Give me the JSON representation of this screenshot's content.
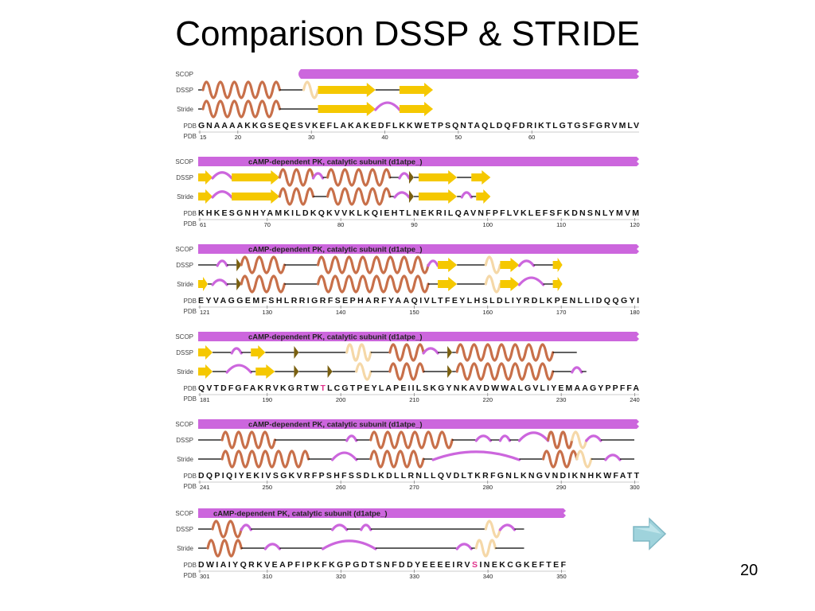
{
  "slide": {
    "title": "Comparison DSSP & STRIDE",
    "number": "20"
  },
  "labels": {
    "scop": "SCOP",
    "dssp": "DSSP",
    "stride": "Stride",
    "pdb": "PDB"
  },
  "colors": {
    "scop": "#cc66dd",
    "helix": "#c8704a",
    "strand": "#f5c800",
    "bridge": "#7a6010",
    "bend": "#cc66dd",
    "turn_pale": "#f5d8a8",
    "highlight": "#e0308a",
    "next_arrow": "#9fd3dc"
  },
  "blocks": [
    {
      "scop_label": "",
      "sequence": "GNAAAAKKGSEQESVKEFLAKAKEDFLKKWETPSQNTAQLDQFDRIKTLGTGSFGRVMLV",
      "numbers": [
        "15",
        "20",
        "30",
        "40",
        "50",
        "60"
      ],
      "highlight": [],
      "dssp": [
        [
          "l",
          0,
          1
        ],
        [
          "h",
          1,
          17
        ],
        [
          "l",
          17,
          22
        ],
        [
          "p",
          22,
          25
        ],
        [
          "s",
          25,
          37
        ],
        [
          "l",
          37,
          42
        ],
        [
          "s",
          42,
          49
        ]
      ],
      "stride": [
        [
          "l",
          0,
          1
        ],
        [
          "h",
          1,
          17
        ],
        [
          "l",
          17,
          25
        ],
        [
          "s",
          25,
          37
        ],
        [
          "b",
          37,
          42
        ],
        [
          "s",
          42,
          49
        ]
      ]
    },
    {
      "scop_label": "cAMP-dependent PK, catalytic subunit (d1atpe_)",
      "sequence": "KHKESGNHYAMKILDKQKVVKLKQIEHTLNEKRILQAVNFPFLVKLEFSFKDNSNLYMVM",
      "numbers": [
        "61",
        "70",
        "80",
        "90",
        "100",
        "110",
        "120"
      ],
      "highlight": [],
      "dssp": [
        [
          "s",
          0,
          3
        ],
        [
          "b",
          3,
          7
        ],
        [
          "s",
          7,
          17
        ],
        [
          "h",
          17,
          24
        ],
        [
          "b",
          24,
          26
        ],
        [
          "l",
          26,
          27
        ],
        [
          "h",
          27,
          40
        ],
        [
          "l",
          40,
          42
        ],
        [
          "b",
          42,
          44
        ],
        [
          "r",
          44,
          45
        ],
        [
          "l",
          45,
          46
        ],
        [
          "s",
          46,
          54
        ],
        [
          "l",
          54,
          57
        ],
        [
          "s",
          57,
          61
        ]
      ],
      "stride": [
        [
          "s",
          0,
          3
        ],
        [
          "b",
          3,
          7
        ],
        [
          "s",
          7,
          17
        ],
        [
          "h",
          17,
          24
        ],
        [
          "l",
          24,
          27
        ],
        [
          "h",
          27,
          40
        ],
        [
          "l",
          40,
          41
        ],
        [
          "b",
          41,
          44
        ],
        [
          "r",
          44,
          45
        ],
        [
          "l",
          45,
          46
        ],
        [
          "s",
          46,
          54
        ],
        [
          "l",
          54,
          55
        ],
        [
          "b",
          55,
          57
        ],
        [
          "l",
          57,
          58
        ],
        [
          "s",
          58,
          61
        ]
      ]
    },
    {
      "scop_label": "cAMP-dependent PK, catalytic subunit (d1atpe_)",
      "sequence": "EYVAGGEMFSHLRRIGRFSEPHARFYAAQIVLTFEYLHSLDLIYRDLKPENLLIDQQGYI",
      "numbers": [
        "121",
        "130",
        "140",
        "150",
        "160",
        "170",
        "180"
      ],
      "highlight": [],
      "dssp": [
        [
          "l",
          0,
          4
        ],
        [
          "b",
          4,
          6
        ],
        [
          "l",
          6,
          8
        ],
        [
          "r",
          8,
          9
        ],
        [
          "h",
          9,
          18
        ],
        [
          "l",
          18,
          25
        ],
        [
          "h",
          25,
          48
        ],
        [
          "b",
          48,
          50
        ],
        [
          "s",
          50,
          54
        ],
        [
          "l",
          54,
          60
        ],
        [
          "p",
          60,
          63
        ],
        [
          "s",
          63,
          67
        ],
        [
          "b",
          67,
          70
        ],
        [
          "l",
          70,
          74
        ],
        [
          "s",
          74,
          76
        ]
      ],
      "stride": [
        [
          "s",
          0,
          2
        ],
        [
          "l",
          2,
          3
        ],
        [
          "b",
          3,
          6
        ],
        [
          "l",
          6,
          8
        ],
        [
          "r",
          8,
          9
        ],
        [
          "h",
          9,
          18
        ],
        [
          "l",
          18,
          25
        ],
        [
          "h",
          25,
          48
        ],
        [
          "l",
          48,
          50
        ],
        [
          "s",
          50,
          54
        ],
        [
          "l",
          54,
          60
        ],
        [
          "p",
          60,
          63
        ],
        [
          "s",
          63,
          67
        ],
        [
          "b",
          67,
          72
        ],
        [
          "l",
          72,
          74
        ],
        [
          "s",
          74,
          76
        ]
      ]
    },
    {
      "scop_label": "cAMP-dependent PK, catalytic subunit (d1atpe_)",
      "sequence": "QVTDFGFAKRVKGRTWTLCGTPEYLAPEIILSKGYNKAVDWWALGVLIYEMAAGYPPFFA",
      "numbers": [
        "181",
        "190",
        "200",
        "210",
        "220",
        "230",
        "240"
      ],
      "highlight": [
        16
      ],
      "dssp": [
        [
          "s",
          0,
          3
        ],
        [
          "l",
          3,
          7
        ],
        [
          "b",
          7,
          9
        ],
        [
          "l",
          9,
          11
        ],
        [
          "s",
          11,
          14
        ],
        [
          "l",
          14,
          20
        ],
        [
          "r",
          20,
          21
        ],
        [
          "l",
          21,
          31
        ],
        [
          "p",
          31,
          36
        ],
        [
          "l",
          36,
          40
        ],
        [
          "h",
          40,
          47
        ],
        [
          "b",
          47,
          50
        ],
        [
          "l",
          50,
          52
        ],
        [
          "r",
          52,
          53
        ],
        [
          "l",
          53,
          54
        ],
        [
          "h",
          54,
          74
        ],
        [
          "l",
          74,
          79
        ]
      ],
      "stride": [
        [
          "s",
          0,
          3
        ],
        [
          "l",
          3,
          6
        ],
        [
          "b",
          6,
          11
        ],
        [
          "l",
          11,
          12
        ],
        [
          "s",
          12,
          16
        ],
        [
          "l",
          16,
          20
        ],
        [
          "r",
          20,
          21
        ],
        [
          "l",
          21,
          27
        ],
        [
          "r",
          27,
          28
        ],
        [
          "l",
          28,
          33
        ],
        [
          "p",
          33,
          36
        ],
        [
          "l",
          36,
          40
        ],
        [
          "h",
          40,
          47
        ],
        [
          "l",
          47,
          52
        ],
        [
          "r",
          52,
          53
        ],
        [
          "l",
          53,
          54
        ],
        [
          "h",
          54,
          74
        ],
        [
          "l",
          74,
          78
        ],
        [
          "b",
          78,
          80
        ],
        [
          "l",
          80,
          81
        ]
      ]
    },
    {
      "scop_label": "cAMP-dependent PK, catalytic subunit (d1atpe_)",
      "sequence": "DQPIQIYEKIVSGKVRFPSHFSSDLKDLLRNLLQVDLTKRFGNLKNGVNDIKNHKWFATT",
      "numbers": [
        "241",
        "250",
        "260",
        "270",
        "280",
        "290",
        "300"
      ],
      "highlight": [],
      "dssp": [
        [
          "l",
          0,
          5
        ],
        [
          "h",
          5,
          16
        ],
        [
          "l",
          16,
          31
        ],
        [
          "b",
          31,
          33
        ],
        [
          "l",
          33,
          36
        ],
        [
          "h",
          36,
          53
        ],
        [
          "l",
          53,
          58
        ],
        [
          "b",
          58,
          61
        ],
        [
          "l",
          61,
          63
        ],
        [
          "b",
          63,
          65
        ],
        [
          "l",
          65,
          67
        ],
        [
          "b",
          67,
          73
        ],
        [
          "h",
          73,
          78
        ],
        [
          "p",
          78,
          81
        ],
        [
          "b",
          81,
          84
        ],
        [
          "l",
          84,
          91
        ]
      ],
      "stride": [
        [
          "l",
          0,
          5
        ],
        [
          "h",
          5,
          23
        ],
        [
          "l",
          23,
          28
        ],
        [
          "b",
          28,
          33
        ],
        [
          "l",
          33,
          36
        ],
        [
          "h",
          36,
          47
        ],
        [
          "l",
          47,
          49
        ],
        [
          "b",
          49,
          67
        ],
        [
          "l",
          67,
          72
        ],
        [
          "h",
          72,
          79
        ],
        [
          "p",
          79,
          82
        ],
        [
          "l",
          82,
          85
        ],
        [
          "b",
          85,
          88
        ],
        [
          "l",
          88,
          91
        ]
      ]
    },
    {
      "scop_label": "cAMP-dependent PK, catalytic subunit (d1atpe_)",
      "sequence": "DWIAIYQRKVEAPFIPKFKGPGDTSNFDDYEEEEIRVSINEKCGKEFTEF",
      "numbers": [
        "301",
        "310",
        "320",
        "330",
        "340",
        "350"
      ],
      "highlight": [
        37
      ],
      "dssp": [
        [
          "l",
          0,
          3
        ],
        [
          "h",
          3,
          9
        ],
        [
          "b",
          9,
          11
        ],
        [
          "l",
          11,
          28
        ],
        [
          "b",
          28,
          31
        ],
        [
          "l",
          31,
          34
        ],
        [
          "b",
          34,
          36
        ],
        [
          "l",
          36,
          60
        ],
        [
          "p",
          60,
          63
        ],
        [
          "b",
          63,
          66
        ],
        [
          "l",
          66,
          68
        ]
      ],
      "stride": [
        [
          "l",
          0,
          2
        ],
        [
          "h",
          2,
          9
        ],
        [
          "l",
          9,
          14
        ],
        [
          "b",
          14,
          17
        ],
        [
          "l",
          17,
          26
        ],
        [
          "b",
          26,
          37
        ],
        [
          "l",
          37,
          54
        ],
        [
          "b",
          54,
          57
        ],
        [
          "l",
          57,
          58
        ],
        [
          "p",
          58,
          62
        ],
        [
          "l",
          62,
          68
        ]
      ]
    }
  ]
}
